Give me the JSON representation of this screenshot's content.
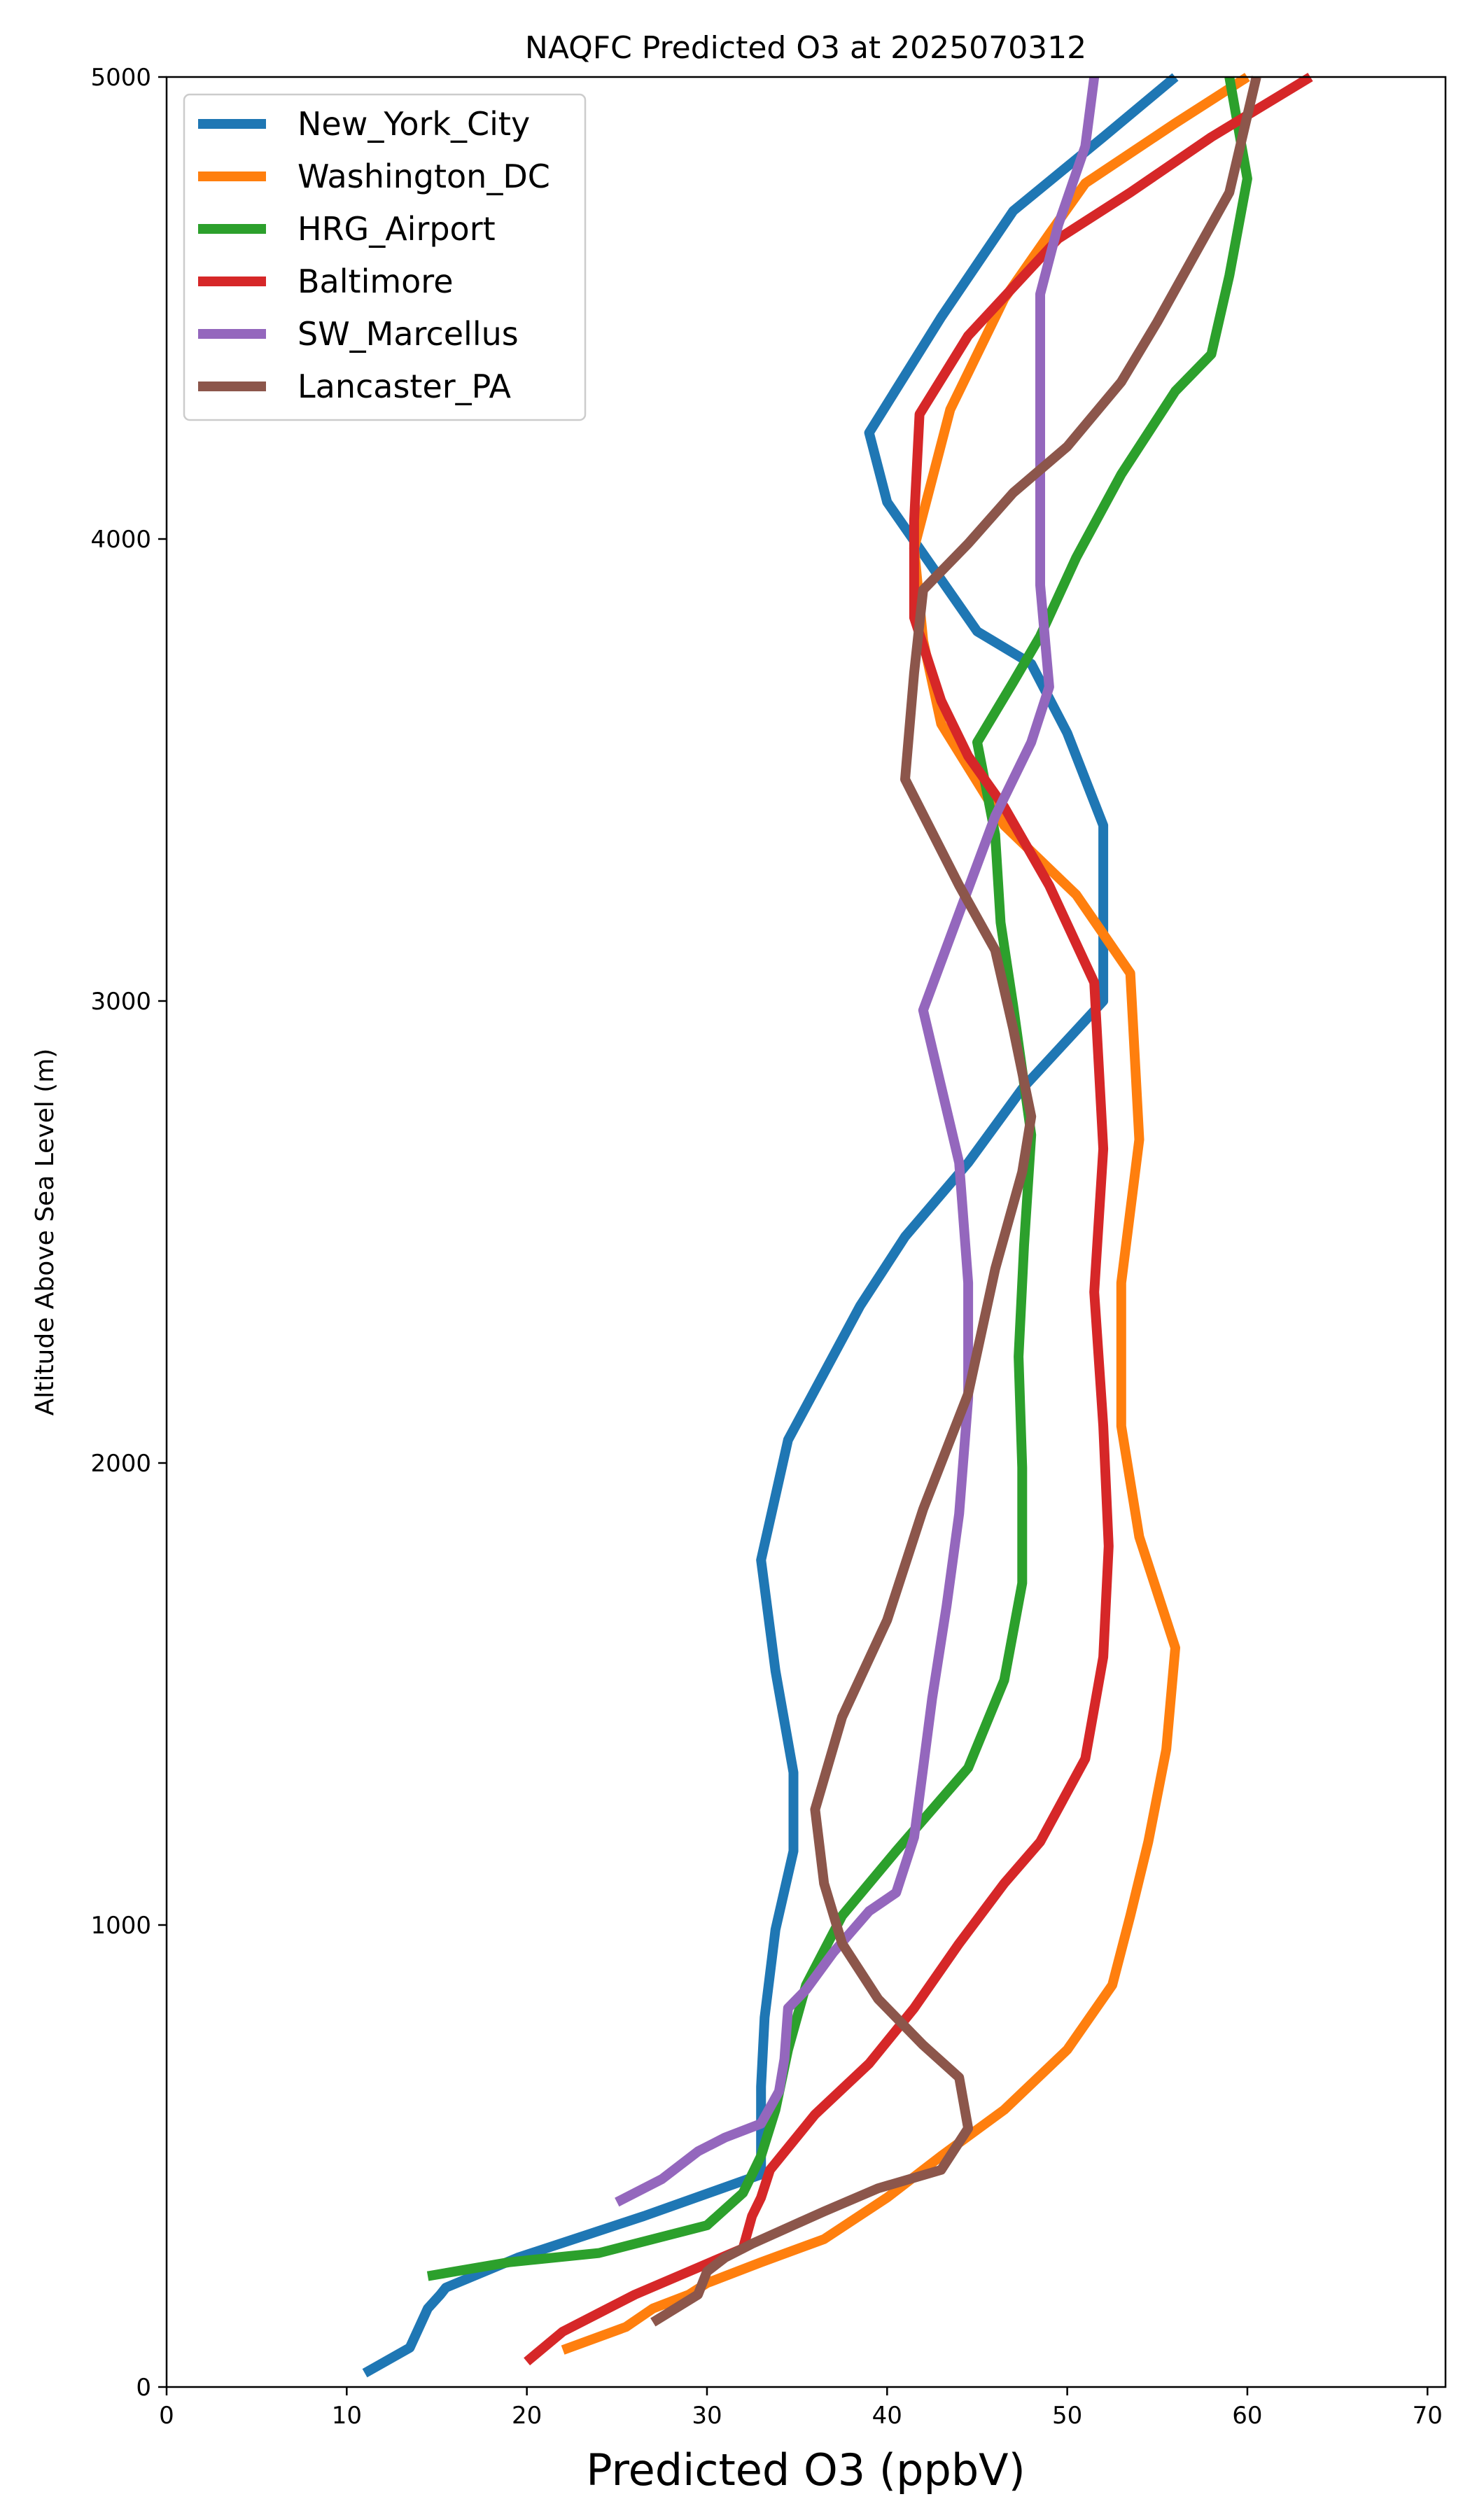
{
  "chart_data": {
    "type": "line",
    "title": "NAQFC Predicted O3 at 2025070312",
    "xlabel": "Predicted O3 (ppbV)",
    "ylabel": "Altitude Above Sea Level (m)",
    "xlim": [
      0,
      71
    ],
    "ylim": [
      0,
      5000
    ],
    "xticks": [
      "0",
      "10",
      "20",
      "30",
      "40",
      "50",
      "60",
      "70"
    ],
    "yticks": [
      "0",
      "1000",
      "2000",
      "3000",
      "4000",
      "5000"
    ],
    "grid": false,
    "legend_position": "upper-left",
    "series": [
      {
        "name": "New_York_City",
        "color": "#1f77b4",
        "points": [
          [
            11.0,
            30
          ],
          [
            13.5,
            85
          ],
          [
            14.5,
            170
          ],
          [
            15.2,
            200
          ],
          [
            15.5,
            215
          ],
          [
            19.5,
            280
          ],
          [
            26.5,
            370
          ],
          [
            33.0,
            460
          ],
          [
            33.0,
            560
          ],
          [
            33.0,
            650
          ],
          [
            33.2,
            800
          ],
          [
            33.8,
            990
          ],
          [
            34.8,
            1160
          ],
          [
            34.8,
            1330
          ],
          [
            33.8,
            1550
          ],
          [
            33.0,
            1790
          ],
          [
            34.5,
            2050
          ],
          [
            38.5,
            2340
          ],
          [
            41.0,
            2490
          ],
          [
            44.5,
            2650
          ],
          [
            47.5,
            2810
          ],
          [
            52.0,
            3000
          ],
          [
            52.0,
            3380
          ],
          [
            50.0,
            3580
          ],
          [
            48.0,
            3730
          ],
          [
            45.0,
            3800
          ],
          [
            40.0,
            4080
          ],
          [
            39.0,
            4230
          ],
          [
            43.0,
            4480
          ],
          [
            47.0,
            4710
          ],
          [
            52.0,
            4870
          ],
          [
            56.0,
            5000
          ]
        ]
      },
      {
        "name": "Washington_DC",
        "color": "#ff7f0e",
        "points": [
          [
            22.0,
            80
          ],
          [
            25.5,
            130
          ],
          [
            27.0,
            170
          ],
          [
            29.0,
            200
          ],
          [
            30.0,
            225
          ],
          [
            33.0,
            270
          ],
          [
            36.5,
            320
          ],
          [
            40.0,
            410
          ],
          [
            43.0,
            500
          ],
          [
            46.5,
            600
          ],
          [
            50.0,
            730
          ],
          [
            52.5,
            870
          ],
          [
            53.5,
            1020
          ],
          [
            54.5,
            1180
          ],
          [
            55.5,
            1380
          ],
          [
            56.0,
            1600
          ],
          [
            54.0,
            1840
          ],
          [
            53.0,
            2080
          ],
          [
            53.0,
            2390
          ],
          [
            54.0,
            2700
          ],
          [
            53.5,
            3060
          ],
          [
            50.5,
            3230
          ],
          [
            46.5,
            3380
          ],
          [
            43.0,
            3600
          ],
          [
            42.0,
            3780
          ],
          [
            41.5,
            3980
          ],
          [
            43.5,
            4280
          ],
          [
            46.5,
            4520
          ],
          [
            49.0,
            4660
          ],
          [
            51.0,
            4770
          ],
          [
            56.0,
            4900
          ],
          [
            60.0,
            5000
          ]
        ]
      },
      {
        "name": "HRG_Airport",
        "color": "#2ca02c",
        "points": [
          [
            14.5,
            240
          ],
          [
            19.0,
            270
          ],
          [
            24.0,
            290
          ],
          [
            30.0,
            350
          ],
          [
            32.0,
            420
          ],
          [
            33.0,
            500
          ],
          [
            33.8,
            600
          ],
          [
            34.5,
            730
          ],
          [
            35.5,
            870
          ],
          [
            37.5,
            1020
          ],
          [
            40.5,
            1160
          ],
          [
            44.5,
            1340
          ],
          [
            46.5,
            1530
          ],
          [
            47.5,
            1740
          ],
          [
            47.5,
            1990
          ],
          [
            47.3,
            2230
          ],
          [
            47.6,
            2470
          ],
          [
            48.0,
            2710
          ],
          [
            47.0,
            2990
          ],
          [
            46.3,
            3170
          ],
          [
            46.0,
            3360
          ],
          [
            45.0,
            3560
          ],
          [
            47.0,
            3690
          ],
          [
            48.5,
            3790
          ],
          [
            50.5,
            3960
          ],
          [
            53.0,
            4140
          ],
          [
            56.0,
            4320
          ],
          [
            58.0,
            4400
          ],
          [
            59.0,
            4570
          ],
          [
            60.0,
            4780
          ],
          [
            59.0,
            5000
          ]
        ]
      },
      {
        "name": "Baltimore",
        "color": "#d62728",
        "points": [
          [
            20.0,
            55
          ],
          [
            22.0,
            120
          ],
          [
            24.0,
            160
          ],
          [
            26.0,
            200
          ],
          [
            29.0,
            250
          ],
          [
            32.0,
            300
          ],
          [
            32.5,
            370
          ],
          [
            33.0,
            410
          ],
          [
            33.5,
            470
          ],
          [
            36.0,
            590
          ],
          [
            39.0,
            700
          ],
          [
            41.5,
            820
          ],
          [
            44.0,
            960
          ],
          [
            46.5,
            1090
          ],
          [
            48.5,
            1180
          ],
          [
            51.0,
            1360
          ],
          [
            52.0,
            1580
          ],
          [
            52.3,
            1820
          ],
          [
            52.0,
            2080
          ],
          [
            51.5,
            2370
          ],
          [
            52.0,
            2680
          ],
          [
            51.5,
            3040
          ],
          [
            49.0,
            3250
          ],
          [
            46.5,
            3420
          ],
          [
            44.5,
            3530
          ],
          [
            43.0,
            3650
          ],
          [
            41.5,
            3830
          ],
          [
            41.5,
            4040
          ],
          [
            41.8,
            4270
          ],
          [
            44.5,
            4440
          ],
          [
            49.5,
            4650
          ],
          [
            53.5,
            4750
          ],
          [
            58.0,
            4870
          ],
          [
            63.5,
            5000
          ]
        ]
      },
      {
        "name": "SW_Marcellus",
        "color": "#9467bd",
        "points": [
          [
            25.0,
            400
          ],
          [
            27.5,
            450
          ],
          [
            29.5,
            510
          ],
          [
            31.0,
            540
          ],
          [
            33.0,
            570
          ],
          [
            34.0,
            640
          ],
          [
            34.3,
            710
          ],
          [
            34.5,
            820
          ],
          [
            35.5,
            860
          ],
          [
            37.0,
            940
          ],
          [
            39.0,
            1030
          ],
          [
            40.5,
            1070
          ],
          [
            41.5,
            1190
          ],
          [
            42.0,
            1340
          ],
          [
            42.5,
            1490
          ],
          [
            43.3,
            1690
          ],
          [
            44.0,
            1890
          ],
          [
            44.5,
            2140
          ],
          [
            44.5,
            2390
          ],
          [
            44.0,
            2650
          ],
          [
            42.0,
            2980
          ],
          [
            44.0,
            3190
          ],
          [
            46.0,
            3400
          ],
          [
            48.0,
            3560
          ],
          [
            49.0,
            3680
          ],
          [
            48.5,
            3900
          ],
          [
            48.5,
            4100
          ],
          [
            48.5,
            4310
          ],
          [
            48.5,
            4530
          ],
          [
            49.5,
            4680
          ],
          [
            51.0,
            4850
          ],
          [
            51.5,
            5000
          ]
        ]
      },
      {
        "name": "Lancaster_PA",
        "color": "#8c564b",
        "points": [
          [
            27.0,
            140
          ],
          [
            29.5,
            200
          ],
          [
            30.0,
            250
          ],
          [
            31.0,
            280
          ],
          [
            32.5,
            310
          ],
          [
            36.5,
            380
          ],
          [
            39.5,
            430
          ],
          [
            43.0,
            470
          ],
          [
            44.5,
            560
          ],
          [
            44.0,
            670
          ],
          [
            42.0,
            740
          ],
          [
            39.5,
            840
          ],
          [
            37.5,
            960
          ],
          [
            36.5,
            1090
          ],
          [
            36.0,
            1250
          ],
          [
            37.5,
            1450
          ],
          [
            40.0,
            1660
          ],
          [
            42.0,
            1900
          ],
          [
            44.5,
            2150
          ],
          [
            46.0,
            2420
          ],
          [
            47.5,
            2630
          ],
          [
            48.0,
            2750
          ],
          [
            47.0,
            2940
          ],
          [
            46.0,
            3110
          ],
          [
            44.0,
            3250
          ],
          [
            41.0,
            3480
          ],
          [
            41.5,
            3710
          ],
          [
            42.0,
            3890
          ],
          [
            44.5,
            3990
          ],
          [
            47.0,
            4100
          ],
          [
            50.0,
            4200
          ],
          [
            53.0,
            4340
          ],
          [
            55.0,
            4470
          ],
          [
            57.0,
            4610
          ],
          [
            59.0,
            4750
          ],
          [
            60.5,
            5000
          ]
        ]
      }
    ]
  }
}
